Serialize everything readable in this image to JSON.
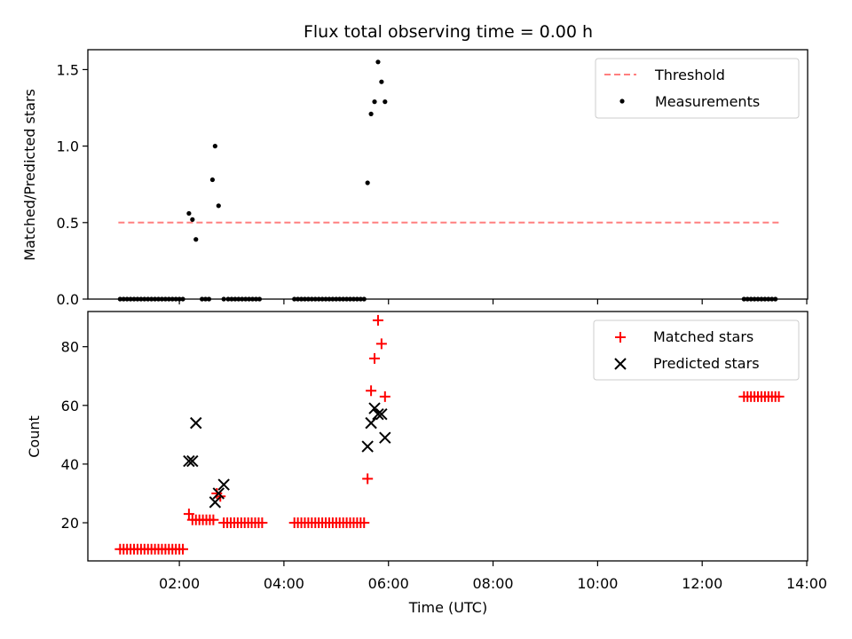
{
  "chart_data": [
    {
      "type": "scatter",
      "title": "Flux total observing time = 0.00 h",
      "xlabel": "",
      "ylabel": "Matched/Predicted stars",
      "xlim": [
        "00:15",
        "14:01"
      ],
      "ylim": [
        0,
        1.63
      ],
      "x_tick_labels": [],
      "y_ticks": [
        0.0,
        0.5,
        1.0,
        1.5
      ],
      "y_tick_labels": [
        "0.0",
        "0.5",
        "1.0",
        "1.5"
      ],
      "legend_position": "top-right",
      "series": [
        {
          "name": "Threshold",
          "kind": "line",
          "style": "dashed",
          "color": "#ff7f7f",
          "x": [
            "00:50",
            "13:30"
          ],
          "y": [
            0.5,
            0.5
          ]
        },
        {
          "name": "Measurements",
          "kind": "points",
          "color": "#000000",
          "x": [
            "00:52",
            "00:56",
            "01:00",
            "01:04",
            "01:08",
            "01:12",
            "01:16",
            "01:20",
            "01:24",
            "01:28",
            "01:32",
            "01:36",
            "01:40",
            "01:44",
            "01:48",
            "01:52",
            "01:56",
            "02:00",
            "02:04",
            "02:11",
            "02:15",
            "02:19",
            "02:26",
            "02:30",
            "02:34",
            "02:38",
            "02:41",
            "02:45",
            "02:51",
            "02:56",
            "03:00",
            "03:04",
            "03:08",
            "03:12",
            "03:16",
            "03:20",
            "03:24",
            "03:28",
            "03:32",
            "04:12",
            "04:16",
            "04:20",
            "04:24",
            "04:28",
            "04:32",
            "04:36",
            "04:40",
            "04:44",
            "04:48",
            "04:52",
            "04:56",
            "05:00",
            "05:04",
            "05:08",
            "05:12",
            "05:16",
            "05:20",
            "05:24",
            "05:28",
            "05:32",
            "05:36",
            "05:40",
            "05:44",
            "05:48",
            "05:52",
            "05:56",
            "12:48",
            "12:52",
            "12:56",
            "13:00",
            "13:04",
            "13:08",
            "13:12",
            "13:16",
            "13:20",
            "13:24"
          ],
          "y": [
            0,
            0,
            0,
            0,
            0,
            0,
            0,
            0,
            0,
            0,
            0,
            0,
            0,
            0,
            0,
            0,
            0,
            0,
            0,
            0.56,
            0.52,
            0.39,
            0,
            0,
            0,
            0.78,
            1.0,
            0.61,
            0,
            0,
            0,
            0,
            0,
            0,
            0,
            0,
            0,
            0,
            0,
            0,
            0,
            0,
            0,
            0,
            0,
            0,
            0,
            0,
            0,
            0,
            0,
            0,
            0,
            0,
            0,
            0,
            0,
            0,
            0,
            0,
            0.76,
            1.21,
            1.29,
            1.55,
            1.42,
            1.29,
            0,
            0,
            0,
            0,
            0,
            0,
            0,
            0,
            0,
            0
          ]
        }
      ]
    },
    {
      "type": "scatter",
      "title": "",
      "xlabel": "Time (UTC)",
      "ylabel": "Count",
      "xlim": [
        "00:15",
        "14:01"
      ],
      "ylim": [
        7,
        92
      ],
      "x_tick_labels": [
        "02:00",
        "04:00",
        "06:00",
        "08:00",
        "10:00",
        "12:00",
        "14:00"
      ],
      "y_ticks": [
        20,
        40,
        60,
        80
      ],
      "y_tick_labels": [
        "20",
        "40",
        "60",
        "80"
      ],
      "legend_position": "top-right",
      "series": [
        {
          "name": "Matched stars",
          "marker": "plus",
          "color": "#ff0000",
          "x": [
            "00:52",
            "00:56",
            "01:00",
            "01:04",
            "01:08",
            "01:12",
            "01:16",
            "01:20",
            "01:24",
            "01:28",
            "01:32",
            "01:36",
            "01:40",
            "01:44",
            "01:48",
            "01:52",
            "01:56",
            "02:00",
            "02:04",
            "02:11",
            "02:15",
            "02:19",
            "02:23",
            "02:27",
            "02:31",
            "02:35",
            "02:39",
            "02:43",
            "02:47",
            "02:51",
            "02:55",
            "02:59",
            "03:03",
            "03:07",
            "03:11",
            "03:15",
            "03:19",
            "03:23",
            "03:27",
            "03:31",
            "03:35",
            "04:12",
            "04:16",
            "04:20",
            "04:24",
            "04:28",
            "04:32",
            "04:36",
            "04:40",
            "04:44",
            "04:48",
            "04:52",
            "04:56",
            "05:00",
            "05:04",
            "05:08",
            "05:12",
            "05:16",
            "05:20",
            "05:24",
            "05:28",
            "05:32",
            "05:36",
            "05:40",
            "05:44",
            "05:48",
            "05:52",
            "05:56",
            "12:48",
            "12:52",
            "12:56",
            "13:00",
            "13:04",
            "13:08",
            "13:12",
            "13:16",
            "13:20",
            "13:24",
            "13:28"
          ],
          "y": [
            11,
            11,
            11,
            11,
            11,
            11,
            11,
            11,
            11,
            11,
            11,
            11,
            11,
            11,
            11,
            11,
            11,
            11,
            11,
            23,
            21,
            21,
            21,
            21,
            21,
            21,
            21,
            30,
            29,
            20,
            20,
            20,
            20,
            20,
            20,
            20,
            20,
            20,
            20,
            20,
            20,
            20,
            20,
            20,
            20,
            20,
            20,
            20,
            20,
            20,
            20,
            20,
            20,
            20,
            20,
            20,
            20,
            20,
            20,
            20,
            20,
            20,
            35,
            65,
            76,
            89,
            81,
            63,
            63,
            63,
            63,
            63,
            63,
            63,
            63,
            63,
            63,
            63,
            63
          ]
        },
        {
          "name": "Predicted stars",
          "marker": "x",
          "color": "#000000",
          "x": [
            "02:11",
            "02:15",
            "02:19",
            "02:41",
            "02:45",
            "02:51",
            "05:36",
            "05:40",
            "05:44",
            "05:48",
            "05:52",
            "05:56"
          ],
          "y": [
            41,
            41,
            54,
            27,
            30,
            33,
            46,
            54,
            59,
            57,
            57,
            49
          ]
        }
      ]
    }
  ]
}
